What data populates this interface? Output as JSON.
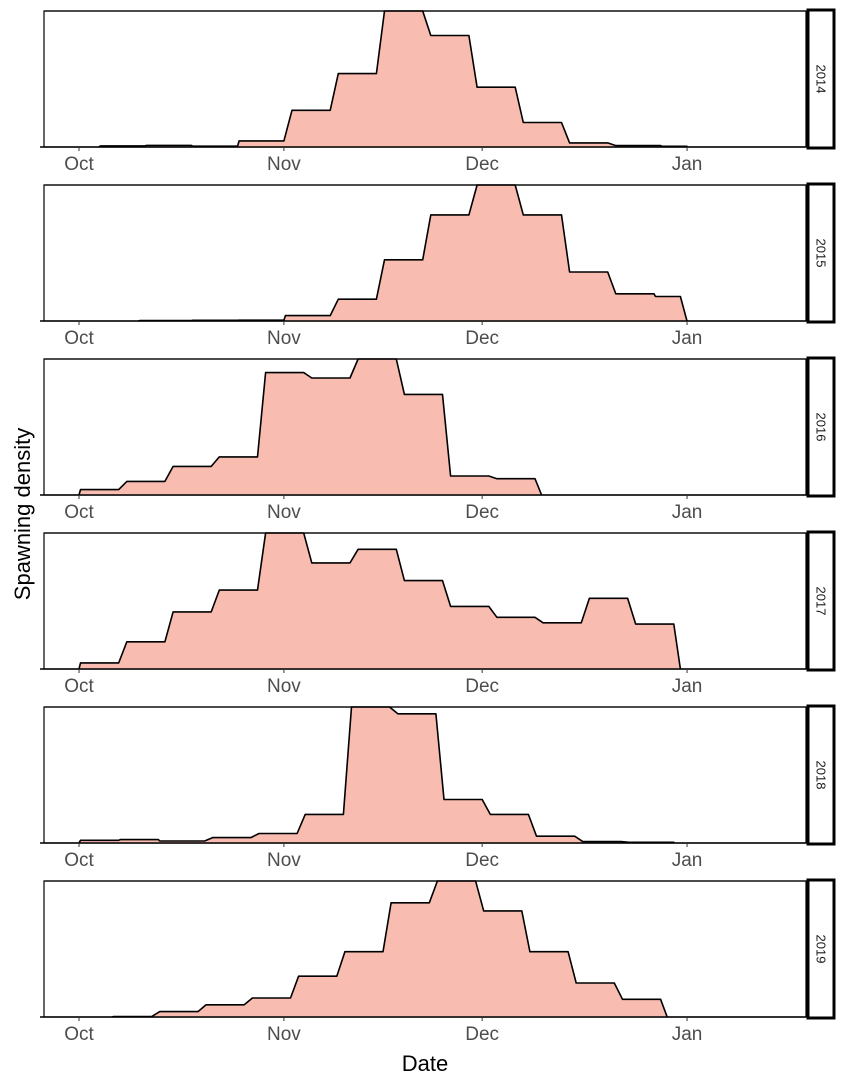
{
  "chart_data": {
    "type": "area",
    "subtype": "faceted step-density area",
    "title": "",
    "xlabel": "Date",
    "ylabel": "Spawning density",
    "x_unit": "days since Oct 1",
    "x_ticks": [
      {
        "label": "Oct",
        "day": 0
      },
      {
        "label": "Nov",
        "day": 31
      },
      {
        "label": "Dec",
        "day": 61
      },
      {
        "label": "Jan",
        "day": 92
      }
    ],
    "xlim": [
      -5.3,
      110
    ],
    "ylim": [
      0,
      1
    ],
    "y_ticks_shown": false,
    "facet_by": "year",
    "fill_color": "#F8BCB0",
    "line_color": "#000000",
    "panels": [
      {
        "label": "2014",
        "steps": [
          [
            3,
            10,
            0.008
          ],
          [
            10,
            17,
            0.012
          ],
          [
            17,
            24,
            0.006
          ],
          [
            24,
            31,
            0.045
          ],
          [
            32,
            38,
            0.27
          ],
          [
            39,
            45,
            0.54
          ],
          [
            46,
            52,
            1.0
          ],
          [
            53,
            59,
            0.82
          ],
          [
            60,
            66,
            0.44
          ],
          [
            67,
            73,
            0.18
          ],
          [
            74,
            80,
            0.03
          ],
          [
            81,
            88,
            0.01
          ],
          [
            88,
            92,
            0.005
          ]
        ],
        "end_day": 92
      },
      {
        "label": "2015",
        "steps": [
          [
            9,
            17,
            0.004
          ],
          [
            17,
            24,
            0.005
          ],
          [
            24,
            31,
            0.006
          ],
          [
            31,
            38,
            0.04
          ],
          [
            39,
            45,
            0.16
          ],
          [
            46,
            52,
            0.45
          ],
          [
            53,
            59,
            0.78
          ],
          [
            60,
            66,
            1.0
          ],
          [
            67,
            73,
            0.78
          ],
          [
            74,
            80,
            0.36
          ],
          [
            81,
            87,
            0.2
          ],
          [
            87,
            91,
            0.18
          ]
        ],
        "end_day": 92
      },
      {
        "label": "2016",
        "steps": [
          [
            0,
            6,
            0.04
          ],
          [
            7,
            13,
            0.1
          ],
          [
            14,
            20,
            0.21
          ],
          [
            21,
            27,
            0.28
          ],
          [
            28,
            34,
            0.9
          ],
          [
            35,
            41,
            0.86
          ],
          [
            42,
            48,
            1.0
          ],
          [
            49,
            55,
            0.74
          ],
          [
            56,
            62,
            0.14
          ],
          [
            63,
            69,
            0.12
          ]
        ],
        "end_day": 70
      },
      {
        "label": "2017",
        "steps": [
          [
            0,
            6,
            0.045
          ],
          [
            7,
            13,
            0.2
          ],
          [
            14,
            20,
            0.42
          ],
          [
            21,
            27,
            0.58
          ],
          [
            28,
            34,
            1.0
          ],
          [
            35,
            41,
            0.78
          ],
          [
            42,
            48,
            0.88
          ],
          [
            49,
            55,
            0.65
          ],
          [
            56,
            62,
            0.46
          ],
          [
            63,
            69,
            0.38
          ],
          [
            70,
            76,
            0.34
          ],
          [
            77,
            83,
            0.52
          ],
          [
            84,
            90,
            0.33
          ]
        ],
        "end_day": 91
      },
      {
        "label": "2018",
        "steps": [
          [
            0,
            6,
            0.02
          ],
          [
            6,
            12,
            0.025
          ],
          [
            12,
            19,
            0.015
          ],
          [
            20,
            26,
            0.04
          ],
          [
            27,
            33,
            0.07
          ],
          [
            34,
            40,
            0.21
          ],
          [
            41,
            47,
            1.0
          ],
          [
            48,
            54,
            0.95
          ],
          [
            55,
            61,
            0.32
          ],
          [
            62,
            68,
            0.21
          ],
          [
            69,
            75,
            0.05
          ],
          [
            76,
            82,
            0.01
          ],
          [
            83,
            90,
            0.005
          ]
        ],
        "end_day": 90
      },
      {
        "label": "2019",
        "steps": [
          [
            5,
            11,
            0.004
          ],
          [
            12,
            18,
            0.04
          ],
          [
            19,
            25,
            0.09
          ],
          [
            26,
            32,
            0.14
          ],
          [
            33,
            39,
            0.3
          ],
          [
            40,
            46,
            0.48
          ],
          [
            47,
            53,
            0.84
          ],
          [
            54,
            60,
            1.0
          ],
          [
            61,
            67,
            0.78
          ],
          [
            68,
            74,
            0.48
          ],
          [
            75,
            81,
            0.25
          ],
          [
            82,
            88,
            0.13
          ]
        ],
        "end_day": 89
      }
    ]
  }
}
